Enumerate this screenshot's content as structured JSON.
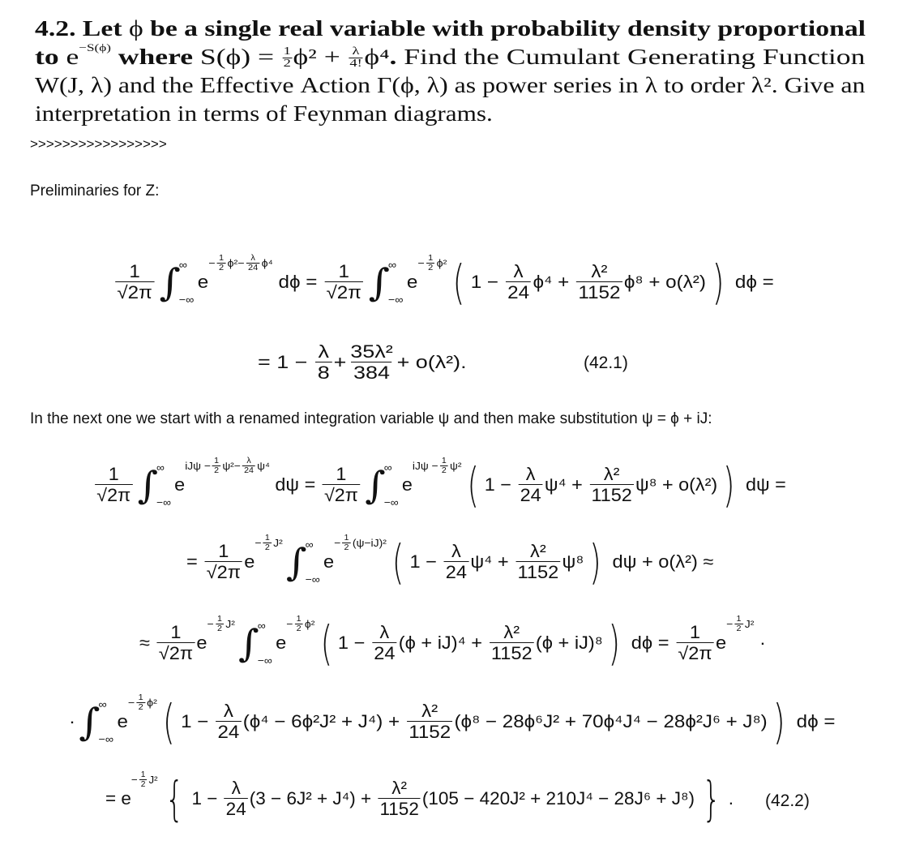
{
  "problem": [
    [
      {
        "b": "4.2. Let "
      },
      "ϕ",
      {
        "b": " be a single real variable with probability density proportional"
      }
    ],
    [
      {
        "b": "to "
      },
      "e",
      {
        "sup": [
          "−S(ϕ)"
        ]
      },
      {
        "b": " where "
      },
      "S(ϕ) = ",
      {
        "f": [
          "1",
          "2"
        ]
      },
      "ϕ² + ",
      {
        "f": [
          "λ",
          "4!"
        ]
      },
      "ϕ⁴",
      {
        "b": ". "
      },
      "Find the Cumulant Generating Function"
    ],
    [
      "W(J, λ) and the Effective Action Γ(ϕ, λ) as power series in λ to order λ². Give an"
    ],
    [
      "interpretation in terms of Feynman diagrams."
    ]
  ],
  "separator": ">>>>>>>>>>>>>>>>>",
  "prelim_heading": "Preliminaries for Z:",
  "next_text": "In the next one we start with a renamed integration variable ψ and then make substitution ψ = ϕ + iJ:",
  "equations": {
    "eq1a": [
      {
        "f": [
          "1",
          "√2π"
        ]
      },
      {
        "int": [
          "∞",
          "−∞"
        ]
      },
      "e",
      {
        "sup": [
          "−",
          {
            "f": [
              "1",
              "2"
            ]
          },
          "ϕ²−",
          {
            "f": [
              "λ",
              "24"
            ]
          },
          "ϕ⁴"
        ]
      },
      " dϕ = ",
      {
        "f": [
          "1",
          "√2π"
        ]
      },
      {
        "int": [
          "∞",
          "−∞"
        ]
      },
      "e",
      {
        "sup": [
          "−",
          {
            "f": [
              "1",
              "2"
            ]
          },
          "ϕ²"
        ]
      },
      {
        "big": "("
      },
      "1 − ",
      {
        "f": [
          "λ",
          "24"
        ]
      },
      "ϕ⁴ + ",
      {
        "f": [
          "λ²",
          "1152"
        ]
      },
      "ϕ⁸ + o(λ²)",
      {
        "big": ")"
      },
      " dϕ ="
    ],
    "eq1b": [
      "= 1 − ",
      {
        "f": [
          "λ",
          "8"
        ]
      },
      "+",
      {
        "f": [
          "35λ²",
          "384"
        ]
      },
      "+ o(λ²)."
    ],
    "eq2a": [
      {
        "f": [
          "1",
          "√2π"
        ]
      },
      {
        "int": [
          "∞",
          "−∞"
        ]
      },
      "e",
      {
        "sup": [
          "iJψ −",
          {
            "f": [
              "1",
              "2"
            ]
          },
          "ψ²−",
          {
            "f": [
              "λ",
              "24"
            ]
          },
          "ψ⁴"
        ]
      },
      " dψ = ",
      {
        "f": [
          "1",
          "√2π"
        ]
      },
      {
        "int": [
          "∞",
          "−∞"
        ]
      },
      "e",
      {
        "sup": [
          "iJψ −",
          {
            "f": [
              "1",
              "2"
            ]
          },
          "ψ²"
        ]
      },
      {
        "big": "("
      },
      "1 − ",
      {
        "f": [
          "λ",
          "24"
        ]
      },
      "ψ⁴ + ",
      {
        "f": [
          "λ²",
          "1152"
        ]
      },
      "ψ⁸ + o(λ²)",
      {
        "big": ")"
      },
      " dψ ="
    ],
    "eq2b": [
      "= ",
      {
        "f": [
          "1",
          "√2π"
        ]
      },
      "e",
      {
        "sup": [
          "−",
          {
            "f": [
              "1",
              "2"
            ]
          },
          "J²"
        ]
      },
      {
        "int": [
          "∞",
          "−∞"
        ]
      },
      "e",
      {
        "sup": [
          "−",
          {
            "f": [
              "1",
              "2"
            ]
          },
          "(ψ−iJ)²"
        ]
      },
      {
        "big": "("
      },
      "1 − ",
      {
        "f": [
          "λ",
          "24"
        ]
      },
      "ψ⁴ + ",
      {
        "f": [
          "λ²",
          "1152"
        ]
      },
      "ψ⁸",
      {
        "big": ")"
      },
      " dψ + o(λ²) ≈"
    ],
    "eq2c": [
      "≈ ",
      {
        "f": [
          "1",
          "√2π"
        ]
      },
      "e",
      {
        "sup": [
          "−",
          {
            "f": [
              "1",
              "2"
            ]
          },
          "J²"
        ]
      },
      {
        "int": [
          "∞",
          "−∞"
        ]
      },
      "e",
      {
        "sup": [
          "−",
          {
            "f": [
              "1",
              "2"
            ]
          },
          "ϕ²"
        ]
      },
      {
        "big": "("
      },
      "1 − ",
      {
        "f": [
          "λ",
          "24"
        ]
      },
      "(ϕ + iJ)⁴ + ",
      {
        "f": [
          "λ²",
          "1152"
        ]
      },
      "(ϕ + iJ)⁸",
      {
        "big": ")"
      },
      " dϕ = ",
      {
        "f": [
          "1",
          "√2π"
        ]
      },
      "e",
      {
        "sup": [
          "−",
          {
            "f": [
              "1",
              "2"
            ]
          },
          "J²"
        ]
      },
      " ·"
    ],
    "eq2d": [
      "·",
      {
        "int": [
          "∞",
          "−∞"
        ]
      },
      "e",
      {
        "sup": [
          "−",
          {
            "f": [
              "1",
              "2"
            ]
          },
          "ϕ²"
        ]
      },
      {
        "big": "("
      },
      "1 − ",
      {
        "f": [
          "λ",
          "24"
        ]
      },
      "(ϕ⁴ − 6ϕ²J² + J⁴) + ",
      {
        "f": [
          "λ²",
          "1152"
        ]
      },
      "(ϕ⁸ − 28ϕ⁶J² + 70ϕ⁴J⁴ − 28ϕ²J⁶ + J⁸)",
      {
        "big": ")"
      },
      " dϕ ="
    ],
    "eq2e": [
      "= e",
      {
        "sup": [
          "−",
          {
            "f": [
              "1",
              "2"
            ]
          },
          "J²"
        ]
      },
      {
        "big": "{"
      },
      "1 − ",
      {
        "f": [
          "λ",
          "24"
        ]
      },
      "(3 − 6J² + J⁴) + ",
      {
        "f": [
          "λ²",
          "1152"
        ]
      },
      "(105 − 420J² + 210J⁴ − 28J⁶ + J⁸)",
      {
        "big": "}"
      },
      "."
    ]
  },
  "tags": {
    "eq1": "(42.1)",
    "eq2": "(42.2)"
  }
}
